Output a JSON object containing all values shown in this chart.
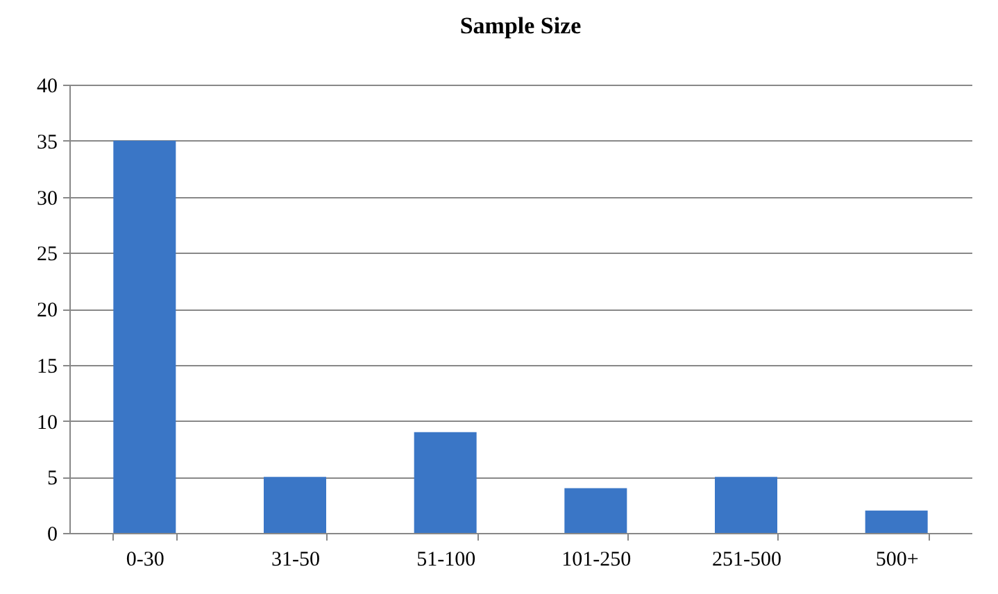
{
  "chart_data": {
    "type": "bar",
    "title": "Sample Size",
    "categories": [
      "0-30",
      "31-50",
      "51-100",
      "101-250",
      "251-500",
      "500+"
    ],
    "values": [
      35,
      5,
      9,
      4,
      5,
      2
    ],
    "color": "#3a76c6",
    "ylim": [
      0,
      40
    ],
    "yticks": [
      0,
      5,
      10,
      15,
      20,
      25,
      30,
      35,
      40
    ],
    "grid": "y"
  }
}
